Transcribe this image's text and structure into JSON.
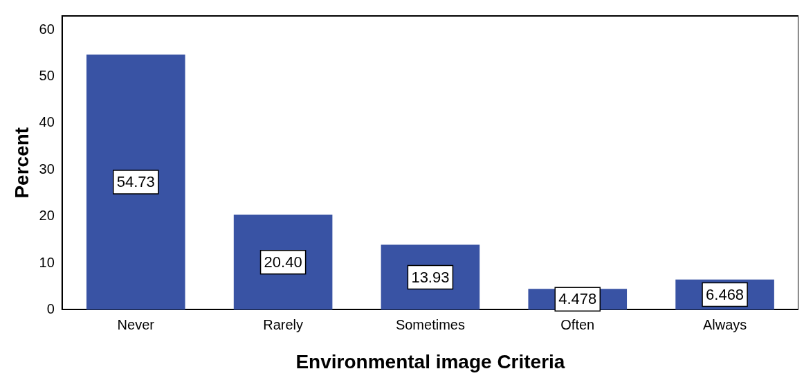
{
  "chart_data": {
    "type": "bar",
    "xlabel": "Environmental image Criteria",
    "ylabel": "Percent",
    "categories": [
      "Never",
      "Rarely",
      "Sometimes",
      "Often",
      "Always"
    ],
    "values": [
      54.73,
      20.4,
      13.93,
      4.478,
      6.468
    ],
    "value_labels": [
      "54.73",
      "20.40",
      "13.93",
      "4.478",
      "6.468"
    ],
    "color": "#3953a4",
    "ylim": [
      0,
      63
    ],
    "yticks": [
      0,
      10,
      20,
      30,
      40,
      50,
      60
    ],
    "grid": false,
    "legend": false
  }
}
